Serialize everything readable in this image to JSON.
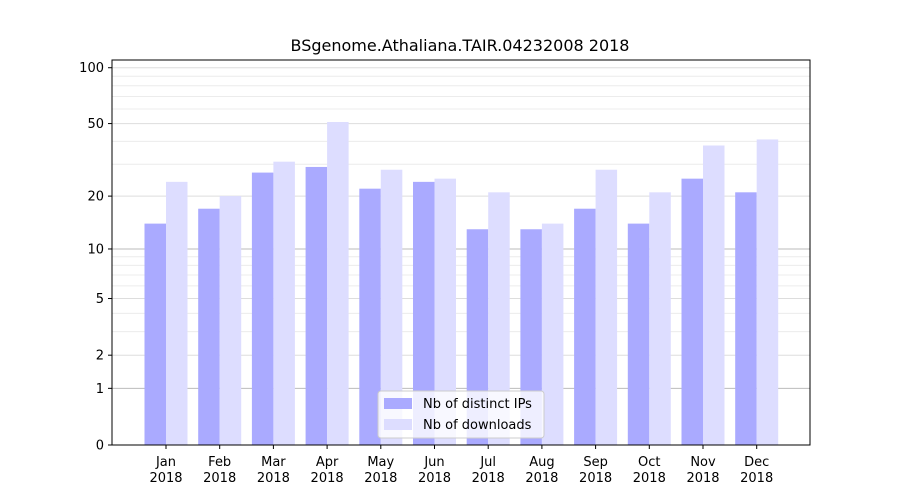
{
  "chart_data": {
    "type": "bar",
    "title": "BSgenome.Athaliana.TAIR.04232008 2018",
    "xlabel": "",
    "ylabel": "",
    "y_scale": "log(1+y)",
    "ylim": [
      0,
      110
    ],
    "y_ticks": [
      0,
      1,
      2,
      5,
      10,
      20,
      50,
      100
    ],
    "y_tick_labels": [
      "0",
      "1",
      "2",
      "5",
      "10",
      "20",
      "50",
      "100"
    ],
    "grid": "horizontal, light",
    "legend_position": "bottom-center",
    "categories": [
      "Jan\n2018",
      "Feb\n2018",
      "Mar\n2018",
      "Apr\n2018",
      "May\n2018",
      "Jun\n2018",
      "Jul\n2018",
      "Aug\n2018",
      "Sep\n2018",
      "Oct\n2018",
      "Nov\n2018",
      "Dec\n2018"
    ],
    "series": [
      {
        "name": "Nb of distinct IPs",
        "color": "#aaaaff",
        "values": [
          14,
          17,
          27,
          29,
          22,
          24,
          13,
          13,
          17,
          14,
          25,
          21
        ]
      },
      {
        "name": "Nb of downloads",
        "color": "#ddddff",
        "values": [
          24,
          20,
          31,
          51,
          28,
          25,
          21,
          14,
          28,
          21,
          38,
          41
        ]
      }
    ]
  }
}
